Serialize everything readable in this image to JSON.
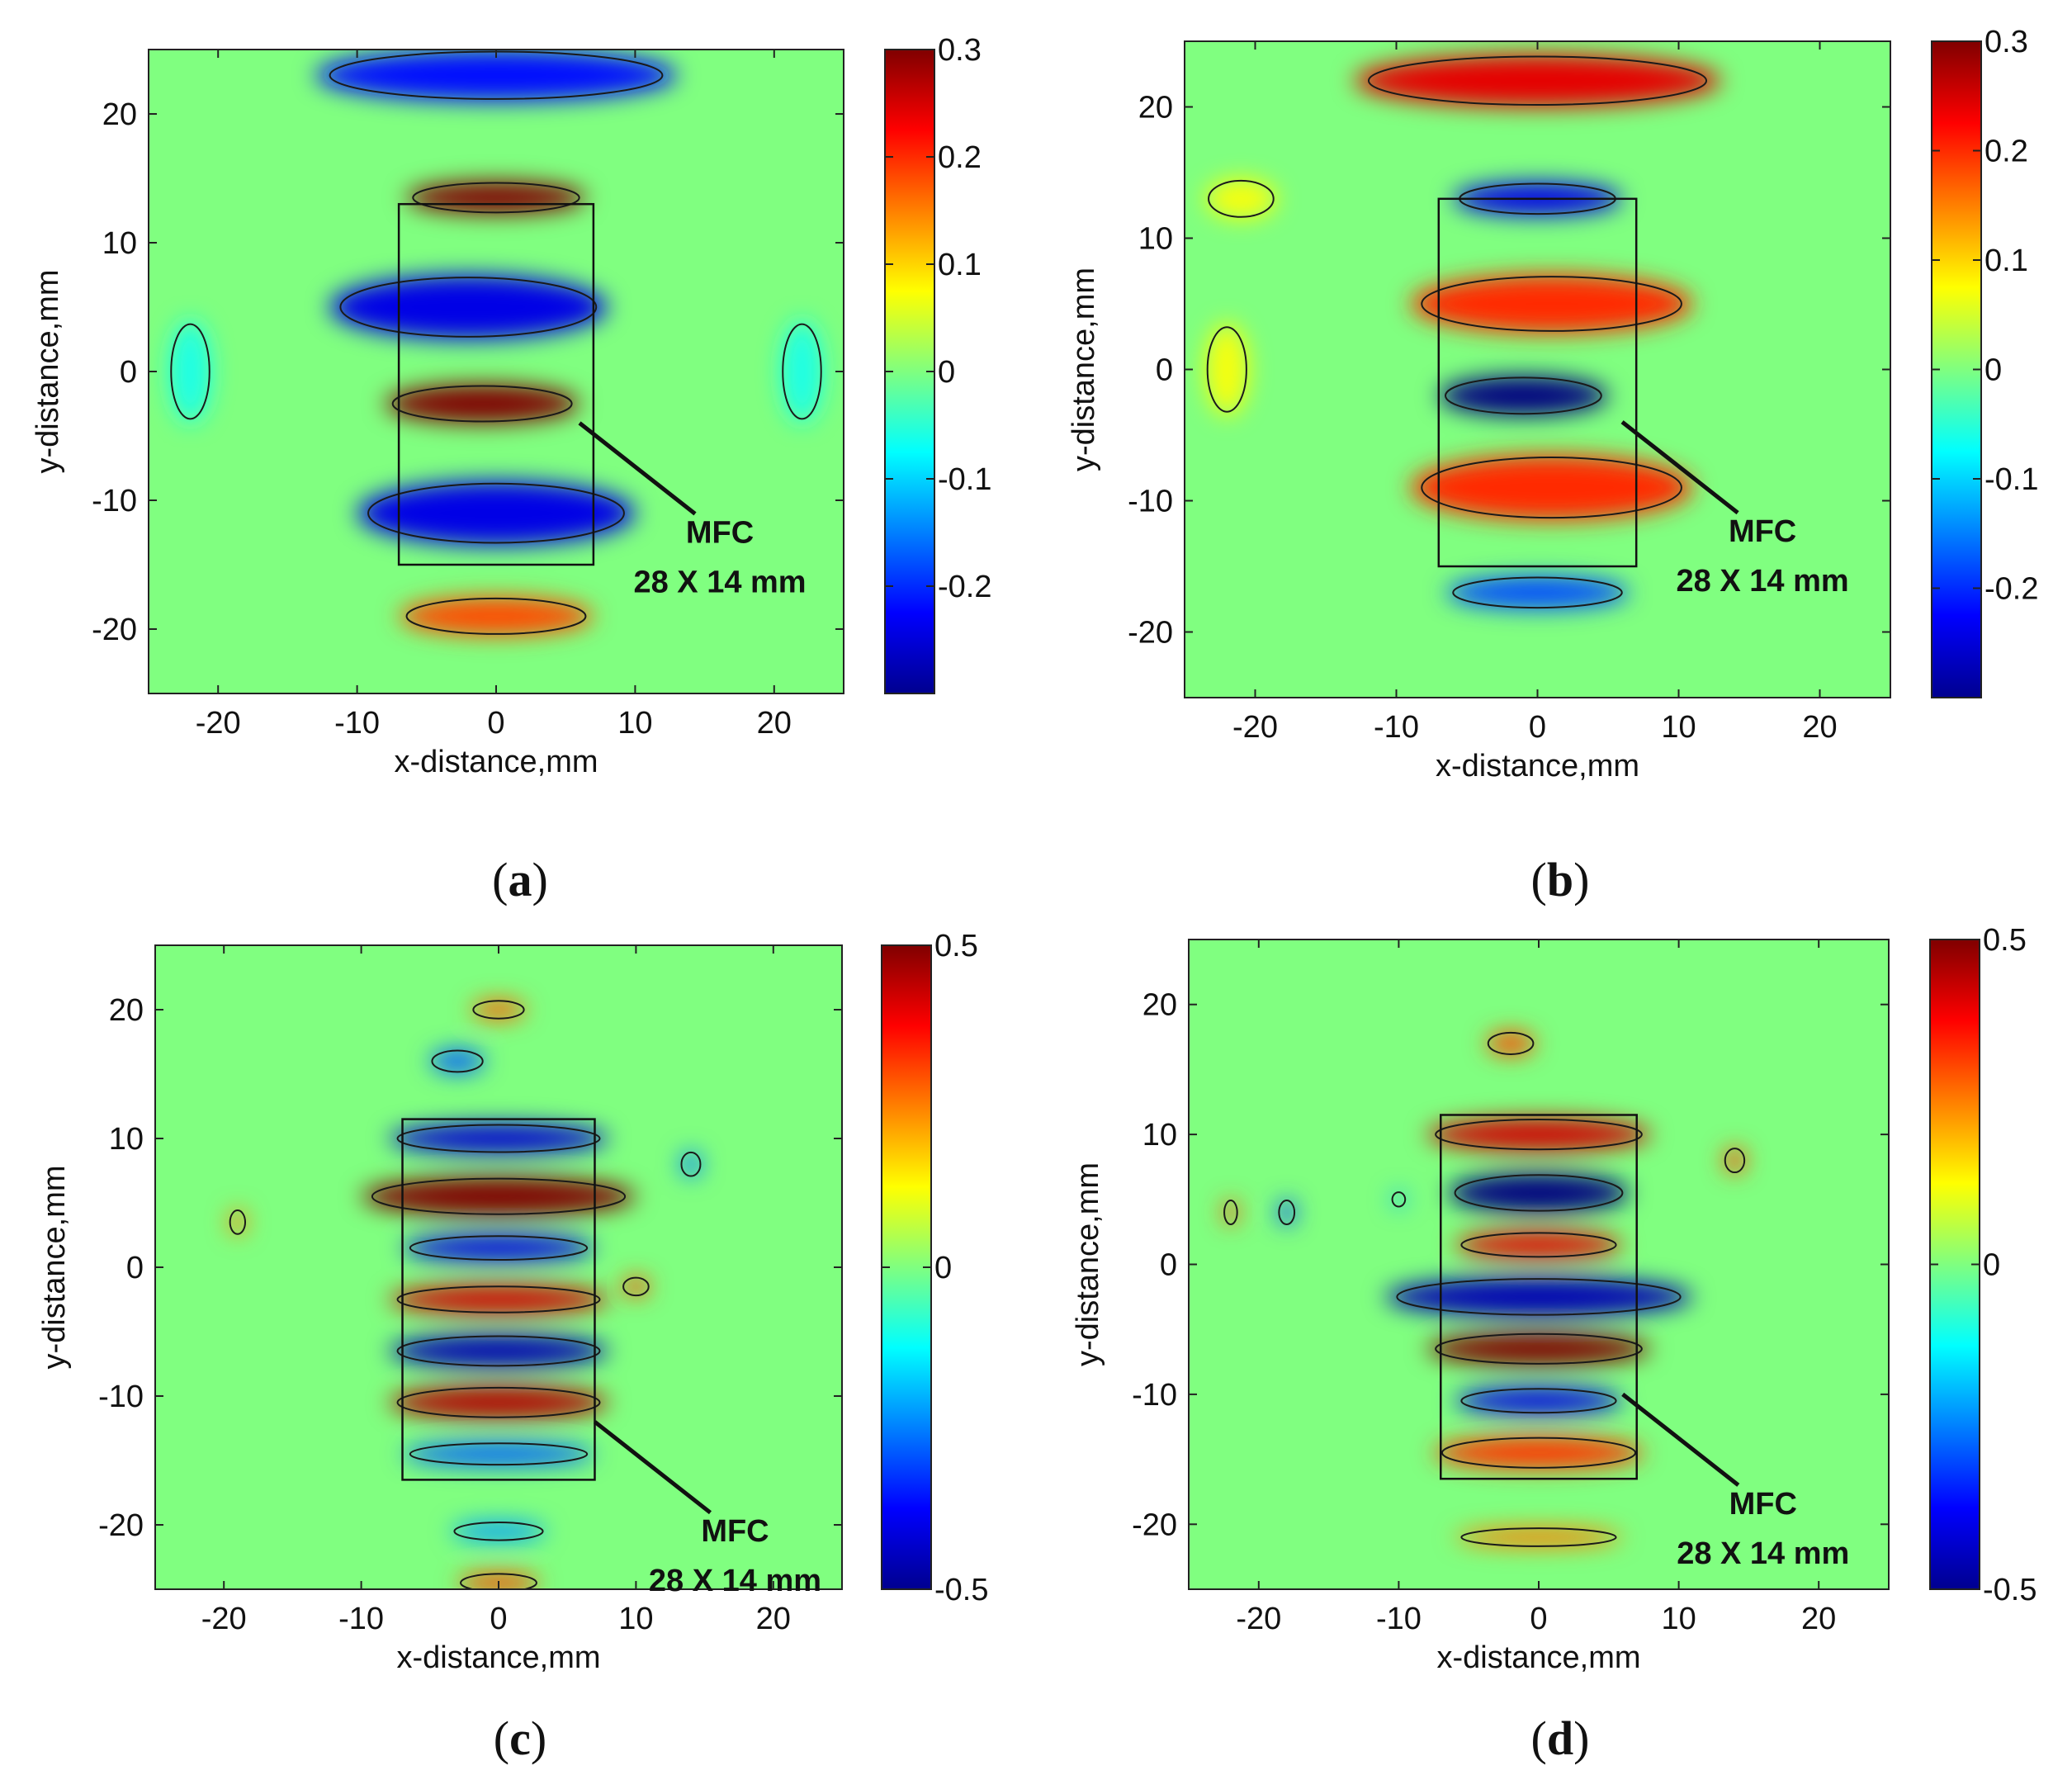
{
  "chart_data": [
    {
      "type": "heatmap",
      "panel": "a",
      "xlabel": "x-distance,mm",
      "ylabel": "y-distance,mm",
      "xlim": [
        -25,
        25
      ],
      "ylim": [
        -25,
        25
      ],
      "xticks": [
        -20,
        -10,
        0,
        10,
        20
      ],
      "yticks": [
        -20,
        -10,
        0,
        10,
        20
      ],
      "clim": [
        -0.3,
        0.3
      ],
      "colorbar_ticks": [
        "0.3",
        "0.2",
        "0.1",
        "0",
        "-0.1",
        "-0.2"
      ],
      "colorbar_tick_values": [
        0.3,
        0.2,
        0.1,
        0,
        -0.1,
        -0.2
      ],
      "mfc_box": {
        "x": [
          -7,
          7
        ],
        "y": [
          -15,
          13
        ]
      },
      "annotation": {
        "line1": "MFC",
        "line2": "28 X 14 mm",
        "target": [
          6,
          -4
        ]
      },
      "blobs": [
        {
          "x": 0,
          "y": 23,
          "w": 26,
          "h": 4,
          "v": -0.22
        },
        {
          "x": 0,
          "y": 13.5,
          "w": 13,
          "h": 2.5,
          "v": 0.3
        },
        {
          "x": -2,
          "y": 5,
          "w": 20,
          "h": 5,
          "v": -0.24
        },
        {
          "x": -1,
          "y": -2.5,
          "w": 14,
          "h": 3,
          "v": 0.32
        },
        {
          "x": 0,
          "y": -11,
          "w": 20,
          "h": 5,
          "v": -0.24
        },
        {
          "x": 0,
          "y": -19,
          "w": 14,
          "h": 3,
          "v": 0.18
        },
        {
          "x": -22,
          "y": 0,
          "w": 3,
          "h": 8,
          "v": -0.06
        },
        {
          "x": 22,
          "y": 0,
          "w": 3,
          "h": 8,
          "v": -0.06
        }
      ],
      "label_prefix": "(",
      "label_letter": "a",
      "label_suffix": ")"
    },
    {
      "type": "heatmap",
      "panel": "b",
      "xlabel": "x-distance,mm",
      "ylabel": "y-distance,mm",
      "xlim": [
        -25,
        25
      ],
      "ylim": [
        -25,
        25
      ],
      "xticks": [
        -20,
        -10,
        0,
        10,
        20
      ],
      "yticks": [
        -20,
        -10,
        0,
        10,
        20
      ],
      "clim": [
        -0.3,
        0.3
      ],
      "colorbar_ticks": [
        "0.3",
        "0.2",
        "0.1",
        "0",
        "-0.1",
        "-0.2"
      ],
      "colorbar_tick_values": [
        0.3,
        0.2,
        0.1,
        0,
        -0.1,
        -0.2
      ],
      "mfc_box": {
        "x": [
          -7,
          7
        ],
        "y": [
          -15,
          13
        ]
      },
      "annotation": {
        "line1": "MFC",
        "line2": "28 X 14 mm",
        "target": [
          6,
          -4
        ]
      },
      "blobs": [
        {
          "x": 0,
          "y": 22,
          "w": 26,
          "h": 4,
          "v": 0.24
        },
        {
          "x": 0,
          "y": 13,
          "w": 12,
          "h": 2.5,
          "v": -0.24
        },
        {
          "x": 1,
          "y": 5,
          "w": 20,
          "h": 4.5,
          "v": 0.2
        },
        {
          "x": -1,
          "y": -2,
          "w": 12,
          "h": 3,
          "v": -0.3
        },
        {
          "x": 1,
          "y": -9,
          "w": 20,
          "h": 5,
          "v": 0.2
        },
        {
          "x": 0,
          "y": -17,
          "w": 13,
          "h": 2.5,
          "v": -0.18
        },
        {
          "x": -22,
          "y": 0,
          "w": 3,
          "h": 7,
          "v": 0.07
        },
        {
          "x": -21,
          "y": 13,
          "w": 5,
          "h": 3,
          "v": 0.07
        }
      ],
      "label_prefix": "(",
      "label_letter": "b",
      "label_suffix": ")"
    },
    {
      "type": "heatmap",
      "panel": "c",
      "xlabel": "x-distance,mm",
      "ylabel": "y-distance,mm",
      "xlim": [
        -25,
        25
      ],
      "ylim": [
        -25,
        25
      ],
      "xticks": [
        -20,
        -10,
        0,
        10,
        20
      ],
      "yticks": [
        -20,
        -10,
        0,
        10,
        20
      ],
      "clim": [
        -0.5,
        0.5
      ],
      "colorbar_ticks": [
        "0.5",
        "0",
        "-0.5"
      ],
      "colorbar_tick_values": [
        0.5,
        0,
        -0.5
      ],
      "mfc_box": {
        "x": [
          -7,
          7
        ],
        "y": [
          -16.5,
          11.5
        ]
      },
      "annotation": {
        "line1": "MFC",
        "line2": "28 X 14 mm",
        "target": [
          7,
          -12
        ]
      },
      "blobs": [
        {
          "x": 0,
          "y": 20,
          "w": 4,
          "h": 1.5,
          "v": 0.28
        },
        {
          "x": -3,
          "y": 16,
          "w": 4,
          "h": 1.8,
          "v": -0.28
        },
        {
          "x": 0,
          "y": 10,
          "w": 16,
          "h": 2.3,
          "v": -0.42
        },
        {
          "x": 0,
          "y": 5.5,
          "w": 20,
          "h": 3,
          "v": 0.5
        },
        {
          "x": 0,
          "y": 1.5,
          "w": 14,
          "h": 2,
          "v": -0.4
        },
        {
          "x": 0,
          "y": -2.5,
          "w": 16,
          "h": 2.2,
          "v": 0.42
        },
        {
          "x": 0,
          "y": -6.5,
          "w": 16,
          "h": 2.5,
          "v": -0.45
        },
        {
          "x": 0,
          "y": -10.5,
          "w": 16,
          "h": 2.5,
          "v": 0.45
        },
        {
          "x": 0,
          "y": -14.5,
          "w": 14,
          "h": 1.8,
          "v": -0.28
        },
        {
          "x": 0,
          "y": -20.5,
          "w": 7,
          "h": 1.5,
          "v": -0.22
        },
        {
          "x": 0,
          "y": -24.5,
          "w": 6,
          "h": 1.5,
          "v": 0.3
        },
        {
          "x": 10,
          "y": -1.5,
          "w": 2,
          "h": 1.5,
          "v": 0.3
        },
        {
          "x": -19,
          "y": 3.5,
          "w": 1.2,
          "h": 2,
          "v": 0.25
        },
        {
          "x": 14,
          "y": 8,
          "w": 1.5,
          "h": 2,
          "v": -0.25
        }
      ],
      "label_prefix": "(",
      "label_letter": "c",
      "label_suffix": ")"
    },
    {
      "type": "heatmap",
      "panel": "d",
      "xlabel": "x-distance,mm",
      "ylabel": "y-distance,mm",
      "xlim": [
        -25,
        25
      ],
      "ylim": [
        -25,
        25
      ],
      "xticks": [
        -20,
        -10,
        0,
        10,
        20
      ],
      "yticks": [
        -20,
        -10,
        0,
        10,
        20
      ],
      "clim": [
        -0.5,
        0.5
      ],
      "colorbar_ticks": [
        "0.5",
        "0",
        "-0.5"
      ],
      "colorbar_tick_values": [
        0.5,
        0,
        -0.5
      ],
      "mfc_box": {
        "x": [
          -7,
          7
        ],
        "y": [
          -16.5,
          11.5
        ]
      },
      "annotation": {
        "line1": "MFC",
        "line2": "28 X 14 mm",
        "target": [
          6,
          -10
        ]
      },
      "blobs": [
        {
          "x": -2,
          "y": 17,
          "w": 3.5,
          "h": 1.8,
          "v": 0.3
        },
        {
          "x": 0,
          "y": 10,
          "w": 16,
          "h": 2.5,
          "v": 0.42
        },
        {
          "x": 0,
          "y": 5.5,
          "w": 13,
          "h": 3,
          "v": -0.5
        },
        {
          "x": 0,
          "y": 1.5,
          "w": 12,
          "h": 2,
          "v": 0.4
        },
        {
          "x": 0,
          "y": -2.5,
          "w": 22,
          "h": 3,
          "v": -0.45
        },
        {
          "x": 0,
          "y": -6.5,
          "w": 16,
          "h": 2.5,
          "v": 0.5
        },
        {
          "x": 0,
          "y": -10.5,
          "w": 12,
          "h": 2,
          "v": -0.4
        },
        {
          "x": 0,
          "y": -14.5,
          "w": 15,
          "h": 2.5,
          "v": 0.32
        },
        {
          "x": 0,
          "y": -21,
          "w": 12,
          "h": 1.5,
          "v": 0.25
        },
        {
          "x": -18,
          "y": 4,
          "w": 1.2,
          "h": 2,
          "v": -0.3
        },
        {
          "x": 14,
          "y": 8,
          "w": 1.5,
          "h": 2,
          "v": 0.3
        },
        {
          "x": -22,
          "y": 4,
          "w": 1,
          "h": 2,
          "v": 0.3
        },
        {
          "x": -10,
          "y": 5,
          "w": 1,
          "h": 1.2,
          "v": -0.2
        }
      ],
      "label_prefix": "(",
      "label_letter": "d",
      "label_suffix": ")"
    }
  ]
}
